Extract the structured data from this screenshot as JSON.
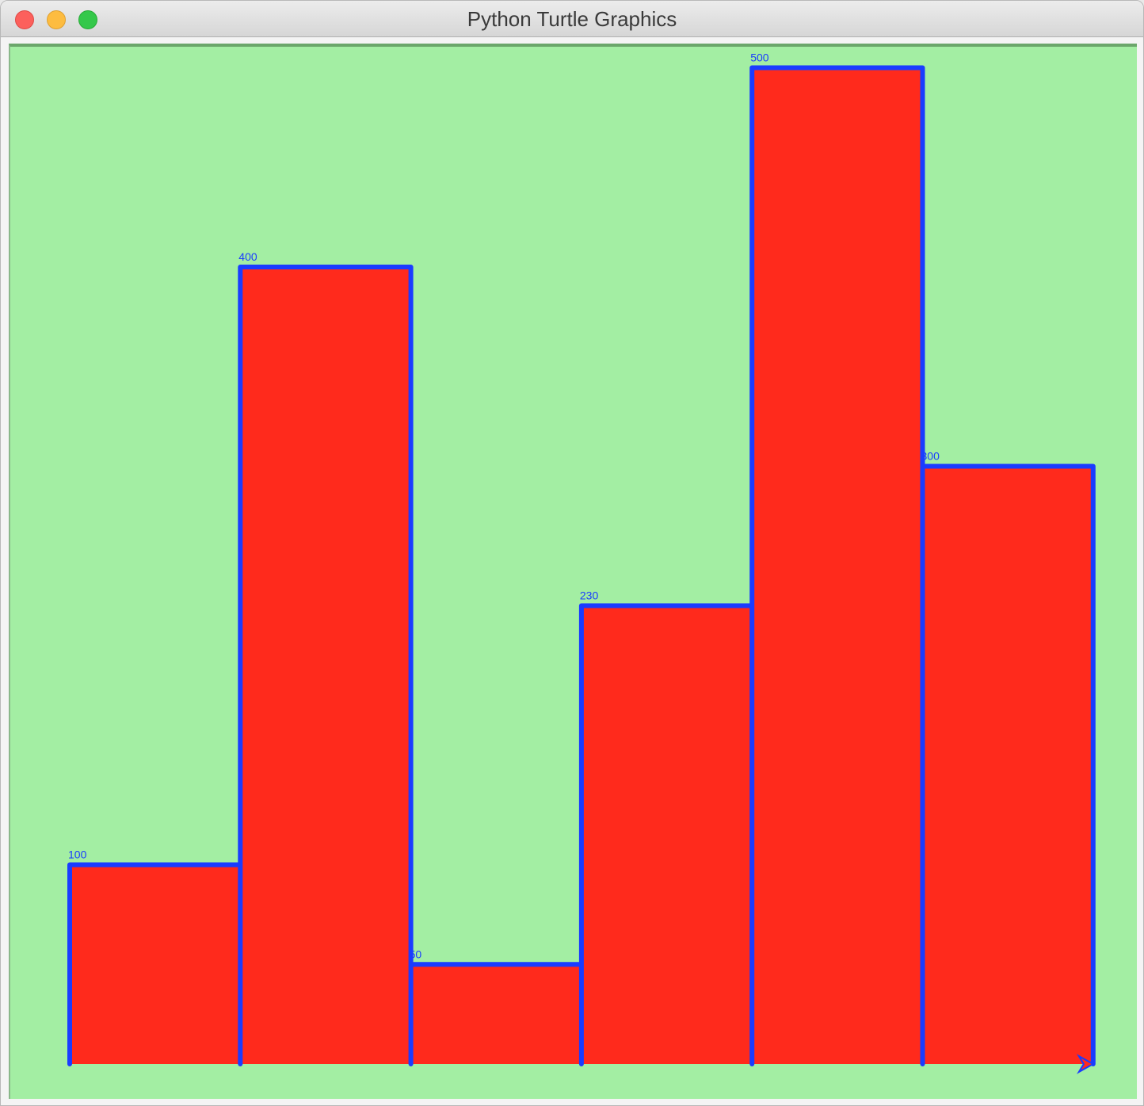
{
  "window": {
    "title": "Python Turtle Graphics"
  },
  "colors": {
    "canvas_background": "#a3eea3",
    "bar_fill": "#ff2a1c",
    "bar_outline": "#1a3cff"
  },
  "chart_data": {
    "type": "bar",
    "categories": [
      "",
      "",
      "",
      "",
      "",
      ""
    ],
    "values": [
      100,
      400,
      50,
      230,
      500,
      300
    ],
    "data_labels": [
      "100",
      "400",
      "50",
      "230",
      "500",
      "300"
    ],
    "title": "",
    "xlabel": "",
    "ylabel": "",
    "grid": false,
    "legend": "none"
  }
}
